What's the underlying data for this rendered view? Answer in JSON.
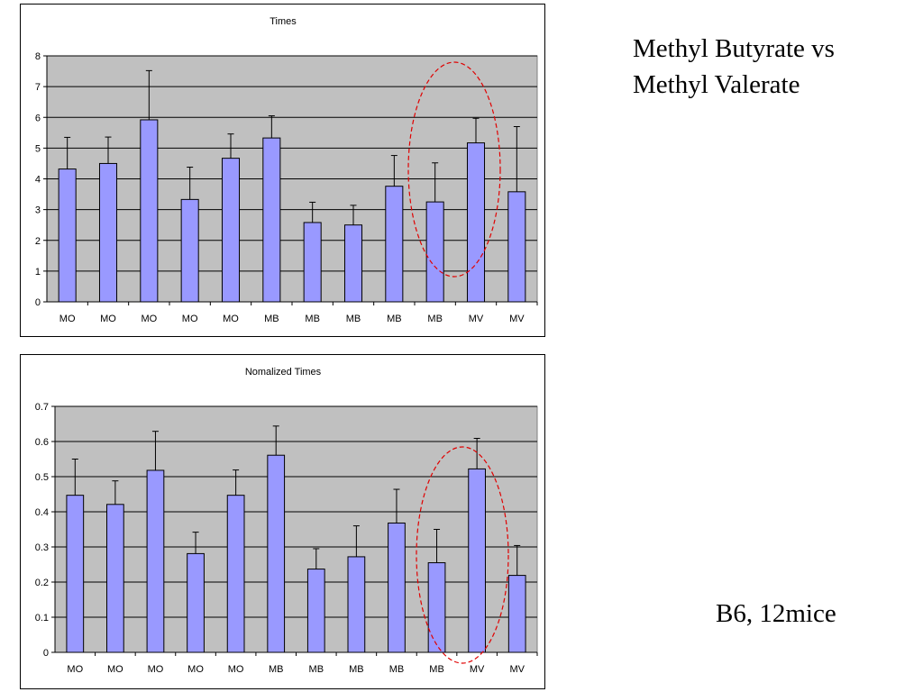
{
  "slide": {
    "title_line1": "Methyl Butyrate vs",
    "title_line2": "Methyl Valerate",
    "note": "B6, 12mice"
  },
  "colors": {
    "plot_background": "#c0c0c0",
    "bar_fill": "#9999ff",
    "bar_stroke": "#000000",
    "highlight_ellipse": "#e00000"
  },
  "chart_data": [
    {
      "type": "bar",
      "title": "Times",
      "xlabel": "",
      "ylabel": "",
      "categories": [
        "MO",
        "MO",
        "MO",
        "MO",
        "MO",
        "MB",
        "MB",
        "MB",
        "MB",
        "MB",
        "MV",
        "MV"
      ],
      "values": [
        4.32,
        4.5,
        5.92,
        3.33,
        4.67,
        5.33,
        2.58,
        2.5,
        3.76,
        3.25,
        5.17,
        3.58
      ],
      "error_plus": [
        1.03,
        0.86,
        1.6,
        1.05,
        0.79,
        0.72,
        0.66,
        0.64,
        1.0,
        1.27,
        0.8,
        2.12
      ],
      "ylim": [
        0,
        8
      ],
      "yticks": [
        "0",
        "1",
        "2",
        "3",
        "4",
        "5",
        "6",
        "7",
        "8"
      ],
      "ytick_values": [
        0,
        1,
        2,
        3,
        4,
        5,
        6,
        7,
        8
      ],
      "grid": true,
      "legend": "none",
      "annotation": "dashed ellipse around bars 10 and 11"
    },
    {
      "type": "bar",
      "title": "Nomalized Times",
      "xlabel": "",
      "ylabel": "",
      "categories": [
        "MO",
        "MO",
        "MO",
        "MO",
        "MO",
        "MB",
        "MB",
        "MB",
        "MB",
        "MB",
        "MV",
        "MV"
      ],
      "values": [
        0.447,
        0.421,
        0.518,
        0.281,
        0.447,
        0.561,
        0.237,
        0.272,
        0.368,
        0.255,
        0.522,
        0.219
      ],
      "error_plus": [
        0.103,
        0.067,
        0.111,
        0.061,
        0.072,
        0.083,
        0.058,
        0.088,
        0.096,
        0.095,
        0.087,
        0.085
      ],
      "ylim": [
        0,
        0.7
      ],
      "yticks": [
        "0",
        "0.1",
        "0.2",
        "0.3",
        "0.4",
        "0.5",
        "0.6",
        "0.7"
      ],
      "ytick_values": [
        0,
        0.1,
        0.2,
        0.3,
        0.4,
        0.5,
        0.6,
        0.7
      ],
      "grid": true,
      "legend": "none",
      "annotation": "dashed ellipse around bars 10 and 11"
    }
  ]
}
